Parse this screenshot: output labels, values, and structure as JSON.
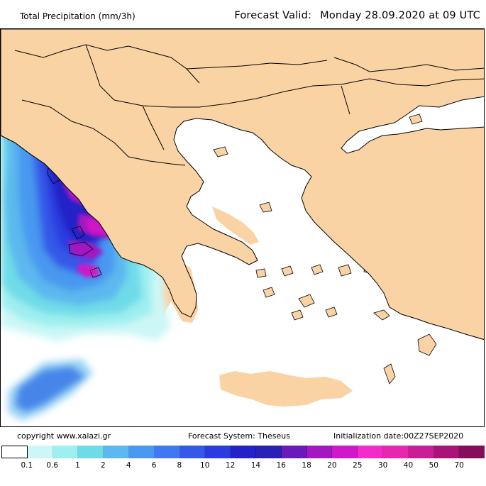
{
  "header": {
    "title": "Total Precipitation (mm/3h)",
    "valid_label": "Forecast Valid:",
    "valid_date": "Monday 28.09.2020 at 09 UTC"
  },
  "footer": {
    "copyright": "copyright www.xalazi.gr",
    "system": "Forecast System: Theseus",
    "init": "Initialization date:00Z27SEP2020"
  },
  "colors": {
    "land": "#f9d3a4",
    "sea": "#ffffff",
    "border": "#000000"
  },
  "legend": {
    "colors": [
      "#ffffff",
      "#cdf7f7",
      "#9eefef",
      "#6fdbe8",
      "#5cb8ee",
      "#4a98f0",
      "#3f78f0",
      "#3458e8",
      "#2a3ce0",
      "#2222c8",
      "#2a20b4",
      "#6a1ab8",
      "#a418c0",
      "#d018c8",
      "#f22cc8",
      "#e628b0",
      "#c81e96",
      "#a81478",
      "#860c5c"
    ],
    "ticks": [
      "0.1",
      "0.6",
      "1",
      "2",
      "4",
      "6",
      "8",
      "10",
      "12",
      "14",
      "16",
      "18",
      "20",
      "25",
      "30",
      "40",
      "50",
      "70"
    ]
  }
}
